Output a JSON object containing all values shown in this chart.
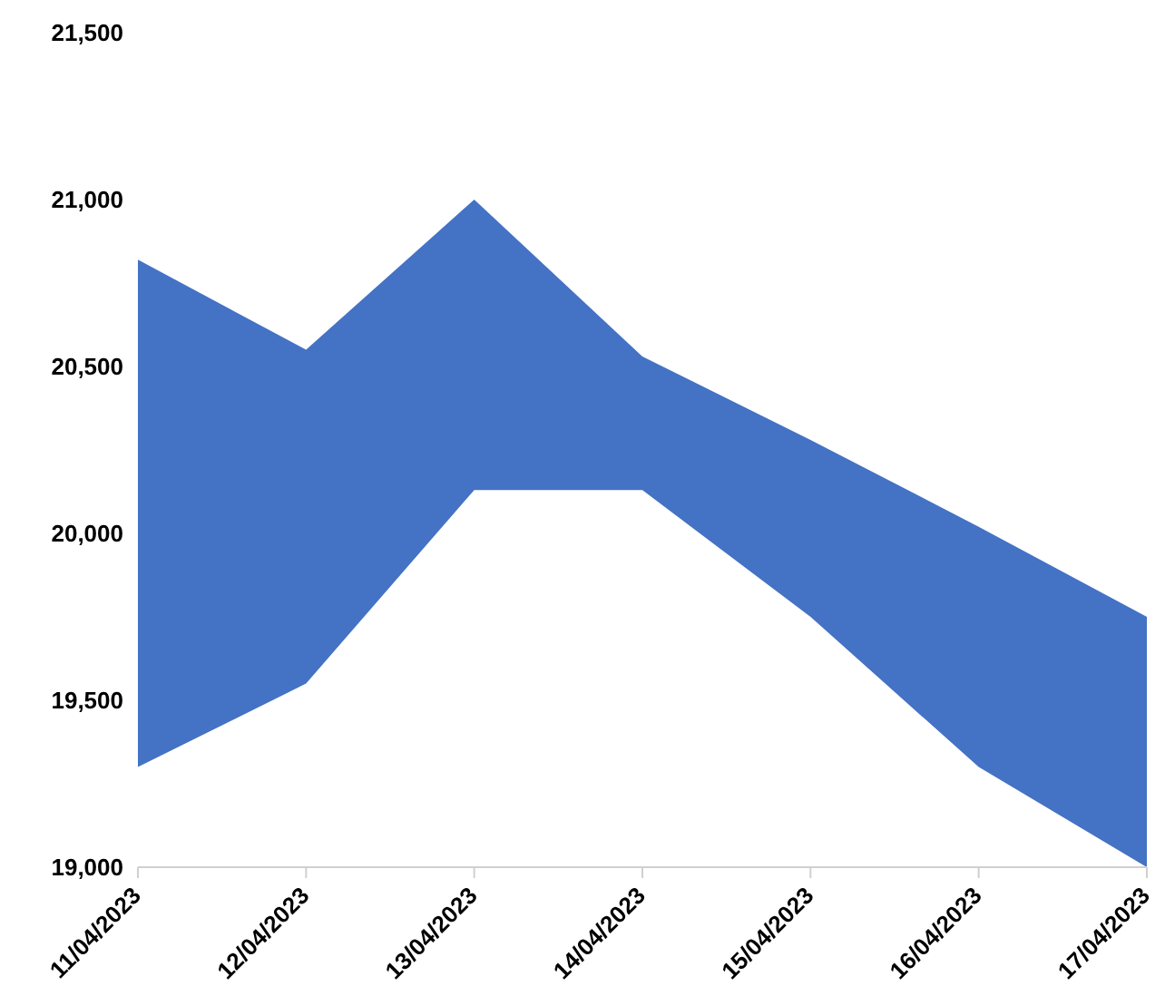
{
  "chart_data": {
    "type": "area",
    "categories": [
      "11/04/2023",
      "12/04/2023",
      "13/04/2023",
      "14/04/2023",
      "15/04/2023",
      "16/04/2023",
      "17/04/2023"
    ],
    "series": [
      {
        "color": "#4472c4",
        "values": [
          20820,
          20550,
          21000,
          20530,
          20280,
          20020,
          19750
        ]
      },
      {
        "color": "#ffffff",
        "values": [
          19300,
          19550,
          20130,
          20130,
          19750,
          19300,
          19000
        ]
      }
    ],
    "ylim": [
      19000,
      21500
    ],
    "yticks": [
      {
        "value": 19000,
        "label": "19,000"
      },
      {
        "value": 19500,
        "label": "19,500"
      },
      {
        "value": 20000,
        "label": "20,000"
      },
      {
        "value": 20500,
        "label": "20,500"
      },
      {
        "value": 21000,
        "label": "21,000"
      },
      {
        "value": 21500,
        "label": "21,500"
      }
    ],
    "grid": false,
    "legend": false
  }
}
